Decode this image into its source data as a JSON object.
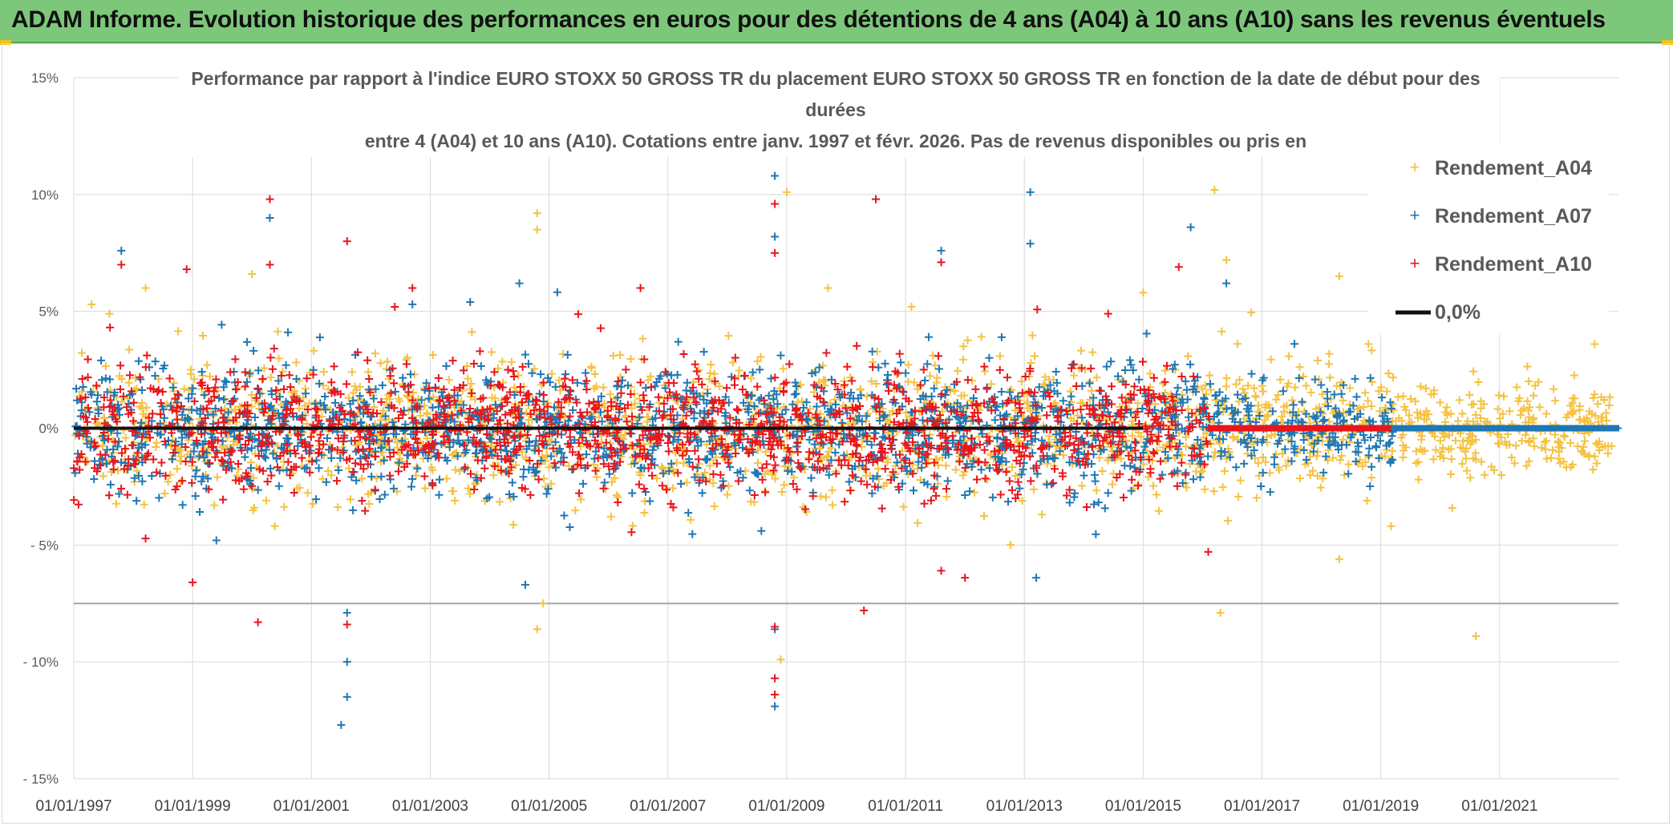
{
  "banner": {
    "title": "ADAM Informe. Evolution historique des performances en euros pour des détentions de 4 ans (A04) à 10 ans (A10) sans les revenus éventuels"
  },
  "colors": {
    "banner_bg": "#7dc77a",
    "series_A04": "#f5c242",
    "series_A07": "#1f77b4",
    "series_A10": "#e8161b",
    "zero_line": "#111111",
    "grid": "#d9d9d9"
  },
  "chart_data": {
    "type": "scatter",
    "title_lines": [
      "Performance par rapport à l'indice EURO STOXX 50 GROSS TR  du placement EURO STOXX 50 GROSS TR en fonction de la date de début pour des",
      "durées",
      "entre 4 (A04) et 10 ans (A10). Cotations entre janv. 1997 et févr. 2026. Pas de revenus disponibles ou pris en"
    ],
    "xlabel": "",
    "ylabel": "",
    "x_range": [
      1997.0,
      2023.0
    ],
    "ylim": [
      -15,
      15
    ],
    "y_ticks": [
      {
        "value": 15,
        "label": "15%"
      },
      {
        "value": 10,
        "label": "10%"
      },
      {
        "value": 5,
        "label": "5%"
      },
      {
        "value": 0,
        "label": "0%"
      },
      {
        "value": -5,
        "label": "- 5%"
      },
      {
        "value": -10,
        "label": "- 10%"
      },
      {
        "value": -15,
        "label": "- 15%"
      }
    ],
    "x_ticks": [
      {
        "value": 1997,
        "label": "01/01/1997"
      },
      {
        "value": 1999,
        "label": "01/01/1999"
      },
      {
        "value": 2001,
        "label": "01/01/2001"
      },
      {
        "value": 2003,
        "label": "01/01/2003"
      },
      {
        "value": 2005,
        "label": "01/01/2005"
      },
      {
        "value": 2007,
        "label": "01/01/2007"
      },
      {
        "value": 2009,
        "label": "01/01/2009"
      },
      {
        "value": 2011,
        "label": "01/01/2011"
      },
      {
        "value": 2013,
        "label": "01/01/2013"
      },
      {
        "value": 2015,
        "label": "01/01/2015"
      },
      {
        "value": 2017,
        "label": "01/01/2017"
      },
      {
        "value": 2019,
        "label": "01/01/2019"
      },
      {
        "value": 2021,
        "label": "01/01/2021"
      }
    ],
    "reference_line_y": -7.5,
    "series": [
      {
        "name": "Rendement_A04",
        "marker": "+",
        "x_range": [
          1997.0,
          2022.9
        ],
        "typical_spread_pct": 2.0,
        "outliers": [
          [
            1997.3,
            5.3
          ],
          [
            1997.6,
            4.9
          ],
          [
            2000.0,
            6.6
          ],
          [
            2004.8,
            9.2
          ],
          [
            2004.8,
            8.5
          ],
          [
            2004.9,
            -7.5
          ],
          [
            2004.8,
            -8.6
          ],
          [
            2009.0,
            10.1
          ],
          [
            2008.9,
            -9.9
          ],
          [
            2011.1,
            5.2
          ],
          [
            2015.0,
            5.8
          ],
          [
            2016.2,
            10.2
          ],
          [
            2016.3,
            -7.9
          ],
          [
            2016.4,
            7.2
          ],
          [
            2018.3,
            6.5
          ],
          [
            2018.3,
            -5.6
          ],
          [
            2020.6,
            -8.9
          ],
          [
            2022.6,
            3.6
          ]
        ]
      },
      {
        "name": "Rendement_A07",
        "marker": "+",
        "x_range": [
          1997.0,
          2019.2
        ],
        "typical_spread_pct": 1.8,
        "outliers": [
          [
            1997.8,
            7.6
          ],
          [
            1999.4,
            -4.8
          ],
          [
            2000.3,
            9.0
          ],
          [
            2001.5,
            -12.7
          ],
          [
            2001.6,
            -11.5
          ],
          [
            2001.6,
            -10.0
          ],
          [
            2001.6,
            -7.9
          ],
          [
            2002.7,
            5.3
          ],
          [
            2004.5,
            6.2
          ],
          [
            2004.6,
            -6.7
          ],
          [
            2008.8,
            10.8
          ],
          [
            2008.8,
            8.2
          ],
          [
            2008.8,
            -11.9
          ],
          [
            2008.8,
            -8.6
          ],
          [
            2011.6,
            7.6
          ],
          [
            2013.1,
            10.1
          ],
          [
            2013.1,
            7.9
          ],
          [
            2013.2,
            -6.4
          ],
          [
            2015.8,
            8.6
          ],
          [
            2016.4,
            6.2
          ]
        ]
      },
      {
        "name": "Rendement_A10",
        "marker": "+",
        "x_range": [
          1997.0,
          2016.1
        ],
        "typical_spread_pct": 1.8,
        "outliers": [
          [
            1997.8,
            7.0
          ],
          [
            1998.9,
            6.8
          ],
          [
            1999.0,
            -6.6
          ],
          [
            2000.3,
            9.8
          ],
          [
            2000.3,
            7.0
          ],
          [
            2000.1,
            -8.3
          ],
          [
            2001.6,
            8.0
          ],
          [
            2001.6,
            -8.4
          ],
          [
            2002.7,
            6.0
          ],
          [
            2008.8,
            9.6
          ],
          [
            2008.8,
            7.5
          ],
          [
            2008.8,
            -10.7
          ],
          [
            2008.8,
            -11.4
          ],
          [
            2008.8,
            -8.5
          ],
          [
            2010.5,
            9.8
          ],
          [
            2010.3,
            -7.8
          ],
          [
            2011.6,
            7.1
          ],
          [
            2011.6,
            -6.1
          ],
          [
            2015.6,
            6.9
          ],
          [
            2012.0,
            -6.4
          ]
        ]
      },
      {
        "name": "0,0%",
        "type": "line",
        "y": 0
      }
    ],
    "legend": {
      "position": "top-right",
      "entries": [
        "Rendement_A04",
        "Rendement_A07",
        "Rendement_A10",
        "0,0%"
      ]
    }
  }
}
